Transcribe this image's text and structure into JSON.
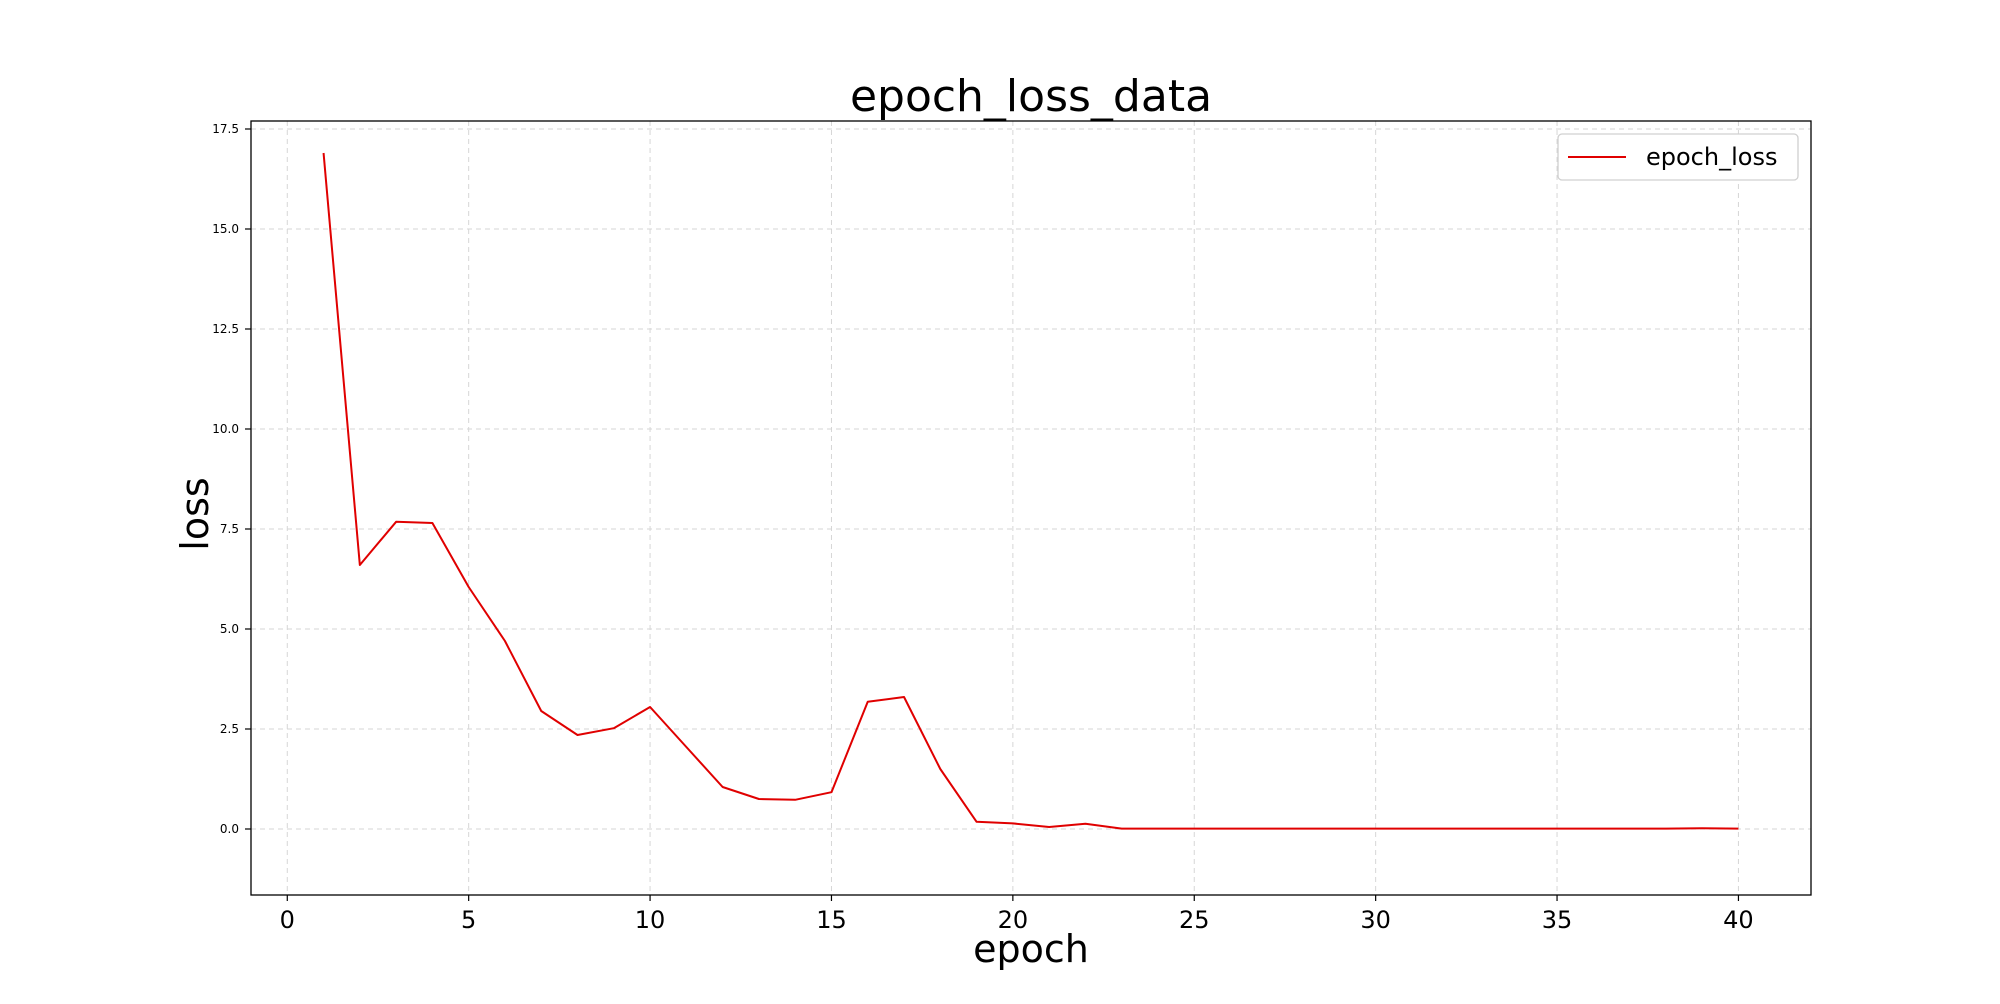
{
  "chart_data": {
    "type": "line",
    "title": "epoch_loss_data",
    "xlabel": "epoch",
    "ylabel": "loss",
    "xlim": [
      -1,
      42
    ],
    "ylim": [
      -1.65,
      17.7
    ],
    "xticks": [
      0,
      5,
      10,
      15,
      20,
      25,
      30,
      35,
      40
    ],
    "yticks": [
      0.0,
      2.5,
      5.0,
      7.5,
      10.0,
      12.5,
      15.0,
      17.5
    ],
    "ytick_labels": [
      "0.0",
      "2.5",
      "5.0",
      "7.5",
      "10.0",
      "12.5",
      "15.0",
      "17.5"
    ],
    "grid": true,
    "legend_position": "top-right",
    "series": [
      {
        "name": "epoch_loss",
        "color": "#e00000",
        "x": [
          1,
          2,
          3,
          4,
          5,
          6,
          7,
          8,
          9,
          10,
          11,
          12,
          13,
          14,
          15,
          16,
          17,
          18,
          19,
          20,
          21,
          22,
          23,
          24,
          25,
          26,
          27,
          28,
          29,
          30,
          31,
          32,
          33,
          34,
          35,
          36,
          37,
          38,
          39,
          40
        ],
        "y": [
          16.9,
          6.6,
          7.68,
          7.65,
          6.05,
          4.7,
          2.95,
          2.35,
          2.52,
          3.05,
          2.05,
          1.05,
          0.75,
          0.73,
          0.92,
          3.18,
          3.3,
          1.5,
          0.18,
          0.14,
          0.05,
          0.13,
          0.01,
          0.01,
          0.01,
          0.01,
          0.01,
          0.01,
          0.01,
          0.01,
          0.01,
          0.01,
          0.01,
          0.01,
          0.01,
          0.01,
          0.01,
          0.01,
          0.02,
          0.01
        ]
      }
    ]
  }
}
